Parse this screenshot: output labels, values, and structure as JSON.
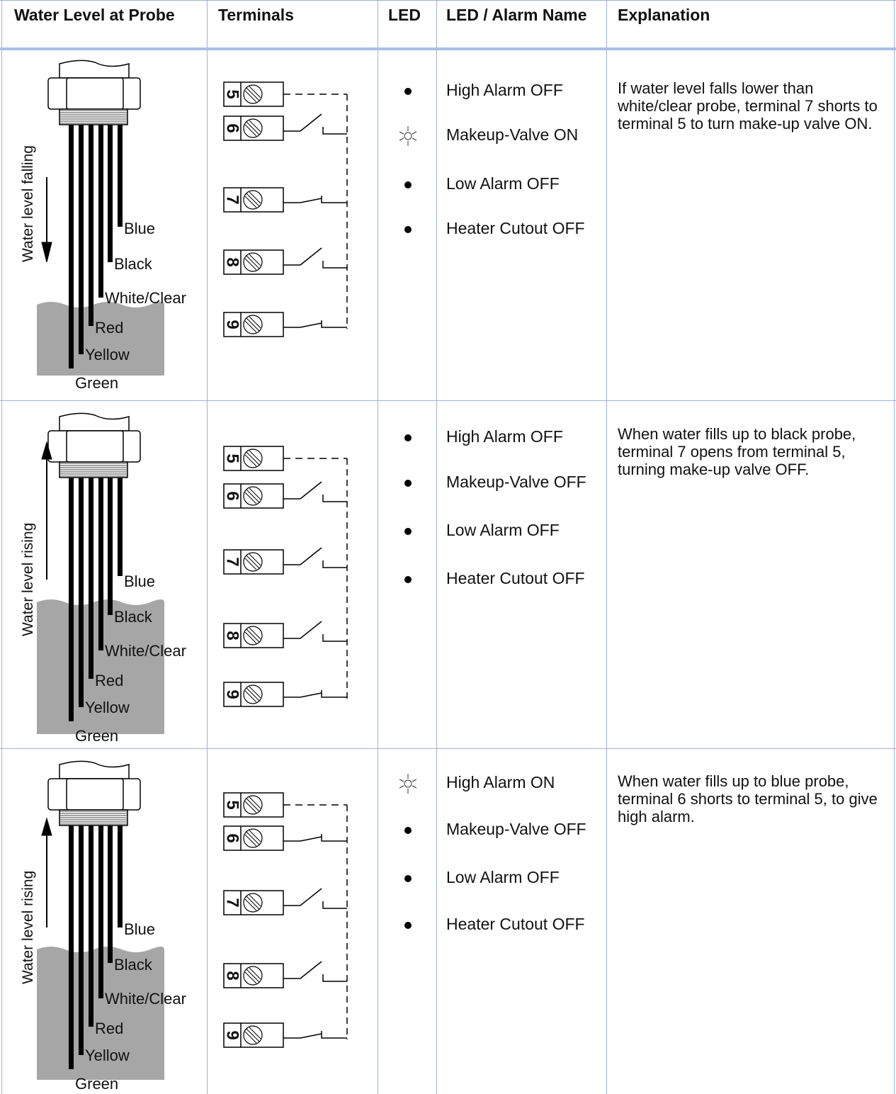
{
  "headers": [
    "Water Level at Probe",
    "Terminals",
    "LED",
    "LED / Alarm Name",
    "Explanation"
  ],
  "probe_labels": [
    "Blue",
    "Black",
    "White/Clear",
    "Red",
    "Yellow",
    "Green"
  ],
  "terminal_numbers": [
    "5",
    "6",
    "7",
    "8",
    "9"
  ],
  "rows": [
    {
      "water_level": "Water level falling",
      "leds": [
        {
          "state": "off",
          "name": "High Alarm OFF"
        },
        {
          "state": "on",
          "name": "Makeup-Valve ON"
        },
        {
          "state": "off",
          "name": "Low Alarm OFF"
        },
        {
          "state": "off",
          "name": "Heater Cutout OFF"
        }
      ],
      "explanation": "If water level falls lower than white/clear probe, terminal 7 shorts to terminal 5 to turn make-up valve ON."
    },
    {
      "water_level": "Water level rising",
      "leds": [
        {
          "state": "off",
          "name": "High Alarm OFF"
        },
        {
          "state": "off",
          "name": "Makeup-Valve OFF"
        },
        {
          "state": "off",
          "name": "Low Alarm OFF"
        },
        {
          "state": "off",
          "name": "Heater Cutout OFF"
        }
      ],
      "explanation": "When water fills up to black probe, terminal 7 opens from terminal 5, turning make-up valve OFF."
    },
    {
      "water_level": "Water level rising",
      "leds": [
        {
          "state": "on",
          "name": "High Alarm ON"
        },
        {
          "state": "off",
          "name": "Makeup-Valve OFF"
        },
        {
          "state": "off",
          "name": "Low Alarm OFF"
        },
        {
          "state": "off",
          "name": "Heater Cutout OFF"
        }
      ],
      "explanation": "When water fills up to blue probe, terminal 6 shorts to terminal 5, to give high alarm."
    }
  ]
}
